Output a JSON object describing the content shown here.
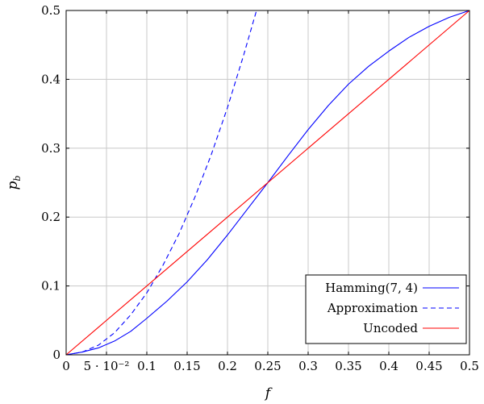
{
  "chart_data": {
    "type": "line",
    "xlabel": "f",
    "ylabel": "p_b",
    "ylabel_main": "p",
    "ylabel_sub": "b",
    "xlim": [
      0,
      0.5
    ],
    "ylim": [
      0,
      0.5
    ],
    "grid": true,
    "legend_position": "bottom-right",
    "x_ticks": [
      {
        "value": 0,
        "label": "0"
      },
      {
        "value": 0.05,
        "label": "5 · 10⁻²"
      },
      {
        "value": 0.1,
        "label": "0.1"
      },
      {
        "value": 0.15,
        "label": "0.15"
      },
      {
        "value": 0.2,
        "label": "0.2"
      },
      {
        "value": 0.25,
        "label": "0.25"
      },
      {
        "value": 0.3,
        "label": "0.3"
      },
      {
        "value": 0.35,
        "label": "0.35"
      },
      {
        "value": 0.4,
        "label": "0.4"
      },
      {
        "value": 0.45,
        "label": "0.45"
      },
      {
        "value": 0.5,
        "label": "0.5"
      }
    ],
    "y_ticks": [
      {
        "value": 0,
        "label": "0"
      },
      {
        "value": 0.1,
        "label": "0.1"
      },
      {
        "value": 0.2,
        "label": "0.2"
      },
      {
        "value": 0.3,
        "label": "0.3"
      },
      {
        "value": 0.4,
        "label": "0.4"
      },
      {
        "value": 0.5,
        "label": "0.5"
      }
    ],
    "series": [
      {
        "name": "Hamming(7, 4)",
        "color": "#0000ff",
        "dash": "solid",
        "x": [
          0,
          0.02,
          0.04,
          0.06,
          0.08,
          0.1,
          0.125,
          0.15,
          0.175,
          0.2,
          0.225,
          0.25,
          0.275,
          0.3,
          0.325,
          0.35,
          0.375,
          0.4,
          0.425,
          0.45,
          0.475,
          0.5
        ],
        "y": [
          0,
          0.004,
          0.01,
          0.02,
          0.034,
          0.053,
          0.078,
          0.106,
          0.138,
          0.174,
          0.212,
          0.25,
          0.289,
          0.327,
          0.362,
          0.393,
          0.419,
          0.441,
          0.461,
          0.477,
          0.49,
          0.5
        ]
      },
      {
        "name": "Approximation",
        "color": "#0000ff",
        "dash": "dashed",
        "x": [
          0,
          0.02,
          0.04,
          0.06,
          0.08,
          0.1,
          0.12,
          0.14,
          0.16,
          0.18,
          0.2,
          0.22,
          0.236
        ],
        "y": [
          0,
          0.004,
          0.014,
          0.032,
          0.058,
          0.09,
          0.13,
          0.176,
          0.23,
          0.291,
          0.359,
          0.435,
          0.5
        ]
      },
      {
        "name": "Uncoded",
        "color": "#ff0000",
        "dash": "solid",
        "x": [
          0,
          0.5
        ],
        "y": [
          0,
          0.5
        ]
      }
    ]
  }
}
